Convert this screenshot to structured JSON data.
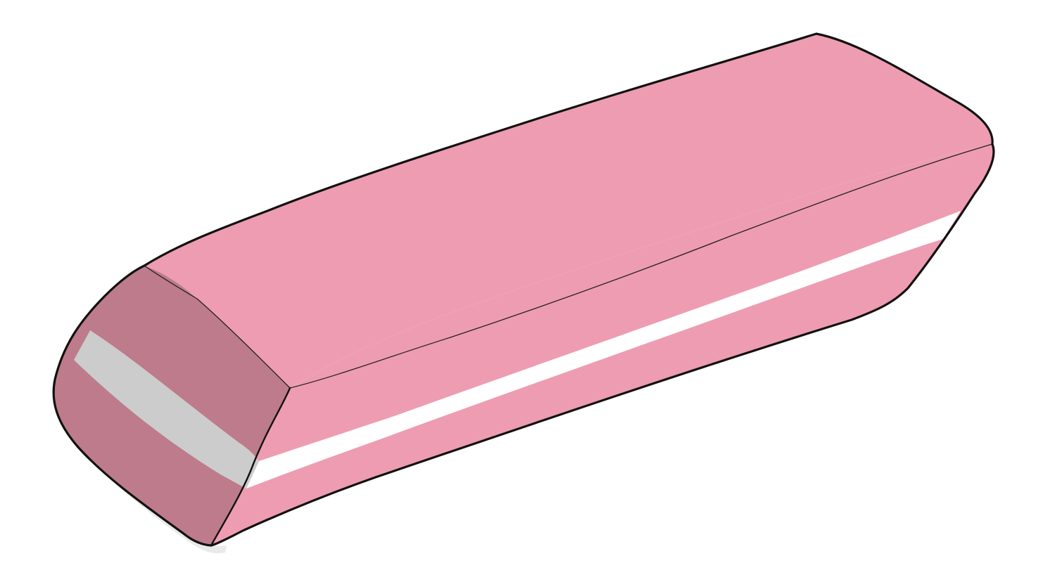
{
  "colors": {
    "background": "#ffffff",
    "eraser_face_top": "#ee9cb1",
    "eraser_face_side": "#ee9cb1",
    "eraser_end_cap": "#be7b8b",
    "stripe_side": "#ffffff",
    "stripe_end": "#cccccc",
    "outline": "#111111",
    "shadow": "#d9d9d9"
  },
  "icons": {
    "subject": "eraser-icon"
  }
}
